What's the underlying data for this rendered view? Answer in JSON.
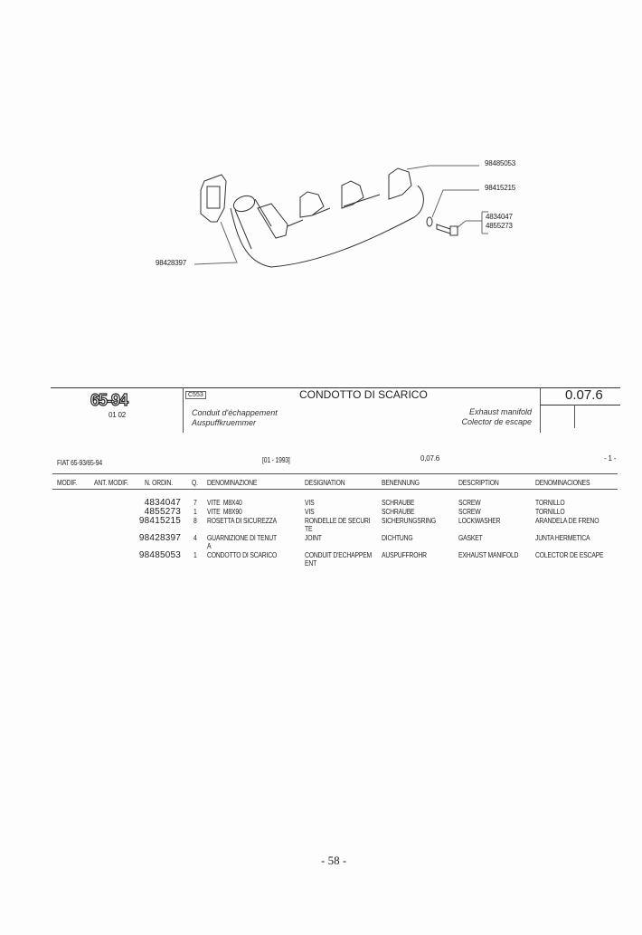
{
  "drawing": {
    "callouts": [
      "98485053",
      "98415215",
      "4834047",
      "4855273",
      "98428397"
    ]
  },
  "header": {
    "model_logo": "65-94",
    "model_sub": "01 02",
    "code_box": "C553",
    "title": "CONDOTTO DI SCARICO",
    "fr": "Conduit d'échappement",
    "de": "Auspuffkruemmer",
    "en": "Exhaust manifold",
    "es": "Colector de escape",
    "section": "0.07.6"
  },
  "subheader": {
    "model": "FIAT 65-93/65-94",
    "date": "[01 - 1993]",
    "section": "0,07.6",
    "page": "- 1 -"
  },
  "table": {
    "columns": [
      "MODIF.",
      "ANT. MODIF.",
      "N. ORDIN.",
      "Q.",
      "DENOMINAZIONE",
      "DESIGNATION",
      "BENENNUNG",
      "DESCRIPTION",
      "DENOMINACIONES"
    ],
    "rows": [
      {
        "num": "4834047",
        "q": "7",
        "it": "VITE  M8X40",
        "fr": "VIS",
        "de": "SCHRAUBE",
        "en": "SCREW",
        "es": "TORNILLO"
      },
      {
        "num": "4855273",
        "q": "1",
        "it": "VITE  M8X90",
        "fr": "VIS",
        "de": "SCHRAUBE",
        "en": "SCREW",
        "es": "TORNILLO"
      },
      {
        "num": "98415215",
        "q": "8",
        "it": "ROSETTA DI SICUREZZA",
        "fr": "RONDELLE DE SECURI\nTE",
        "de": "SICHERUNGSRING",
        "en": "LOCKWASHER",
        "es": "ARANDELA DE FRENO"
      },
      {
        "num": "98428397",
        "q": "4",
        "it": "GUARNIZIONE DI TENUT\nA",
        "fr": "JOINT",
        "de": "DICHTUNG",
        "en": "GASKET",
        "es": "JUNTA HERMETICA"
      },
      {
        "num": "98485053",
        "q": "1",
        "it": "CONDOTTO DI SCARICO",
        "fr": "CONDUIT D'ECHAPPEM\nENT",
        "de": "AUSPUFFROHR",
        "en": "EXHAUST MANIFOLD",
        "es": "COLECTOR DE ESCAPE"
      }
    ]
  },
  "footer": {
    "page_number": "- 58 -"
  }
}
